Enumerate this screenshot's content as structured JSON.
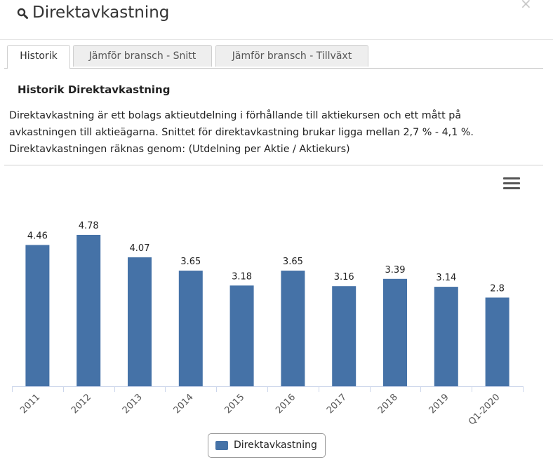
{
  "header": {
    "title": "Direktavkastning"
  },
  "tabs": [
    {
      "label": "Historik"
    },
    {
      "label": "Jämför bransch - Snitt"
    },
    {
      "label": "Jämför bransch - Tillväxt"
    }
  ],
  "section": {
    "title": "Historik Direktavkastning",
    "description_lines": [
      "Direktavkastning är ett bolags aktieutdelning i förhållande till aktiekursen och ett mått på",
      "avkastningen till aktieägarna. Snittet för direktavkastning brukar ligga mellan 2,7 % - 4,1 %.",
      "Direktavkastningen räknas genom: (Utdelning per Aktie / Aktiekurs)"
    ]
  },
  "colors": {
    "bar": "#4572a7",
    "axis": "#ccd6eb",
    "label": "#222222"
  },
  "chart_data": {
    "type": "bar",
    "categories": [
      "2011",
      "2012",
      "2013",
      "2014",
      "2015",
      "2016",
      "2017",
      "2018",
      "2019",
      "Q1-2020"
    ],
    "series": [
      {
        "name": "Direktavkastning",
        "values": [
          4.46,
          4.78,
          4.07,
          3.65,
          3.18,
          3.65,
          3.16,
          3.39,
          3.14,
          2.8
        ]
      }
    ],
    "data_labels": [
      "4.46",
      "4.78",
      "4.07",
      "3.65",
      "3.18",
      "3.65",
      "3.16",
      "3.39",
      "3.14",
      "2.8"
    ],
    "ylim": [
      0,
      5.2
    ],
    "grid": false,
    "legend": "bottom-center"
  }
}
